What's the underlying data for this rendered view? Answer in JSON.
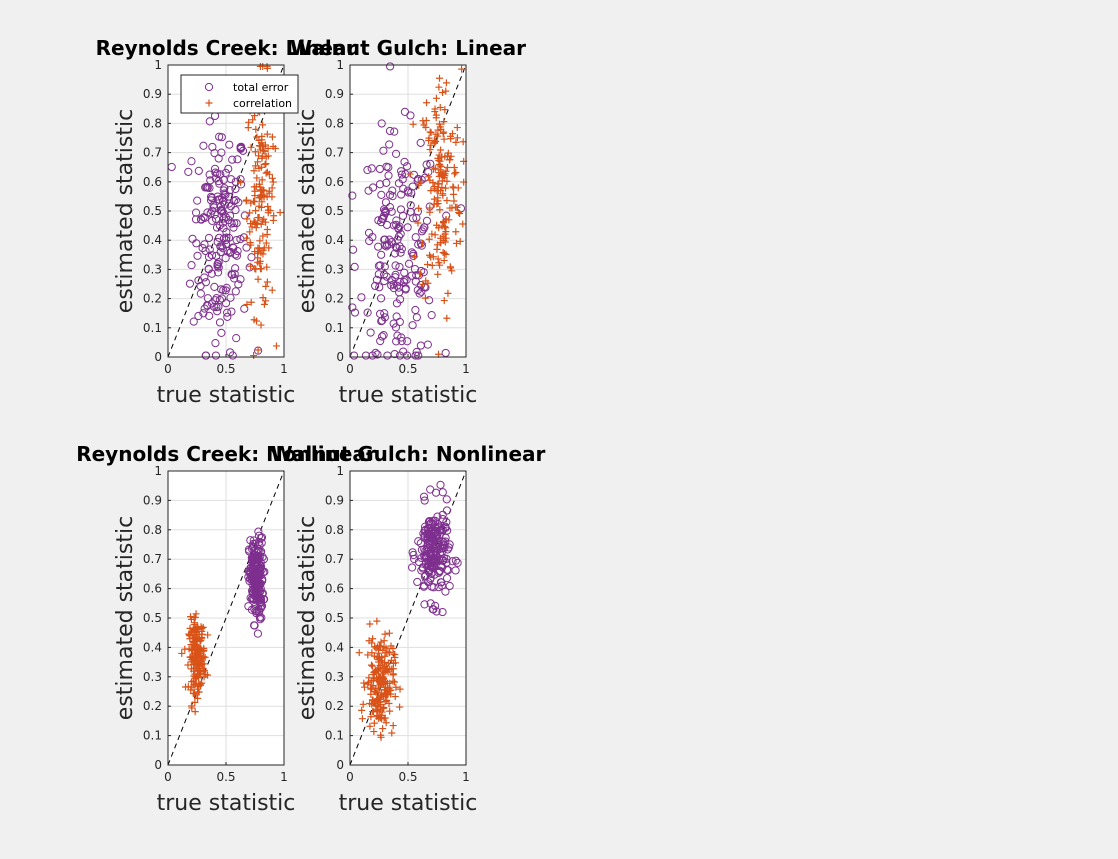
{
  "colors": {
    "total_error": "#7E2F8E",
    "correlation": "#D95319",
    "background": "#f0f0f0",
    "axes_bg": "#ffffff",
    "grid": "#dfdfdf"
  },
  "legend": {
    "entries": [
      "total error",
      "correlation"
    ],
    "location": "top-left of first panel"
  },
  "chart_data": [
    {
      "type": "scatter",
      "title": "Reynolds Creek: Linear",
      "xlabel": "true statistic",
      "ylabel": "estimated statistic",
      "xlim": [
        0,
        1
      ],
      "ylim": [
        0,
        1
      ],
      "xticks": [
        "0",
        "0.5",
        "1"
      ],
      "yticks": [
        "0",
        "0.1",
        "0.2",
        "0.3",
        "0.4",
        "0.5",
        "0.6",
        "0.7",
        "0.8",
        "0.9",
        "1"
      ],
      "grid": true,
      "reference_line": "y = x (dashed)",
      "series": [
        {
          "name": "total error",
          "marker": "circle",
          "x_center": 0.45,
          "x_spread": 0.12,
          "y_center": 0.42,
          "y_spread": 0.2,
          "count": 200
        },
        {
          "name": "correlation",
          "marker": "plus",
          "x_center": 0.8,
          "x_spread": 0.06,
          "y_center": 0.55,
          "y_spread": 0.2,
          "count": 160
        }
      ]
    },
    {
      "type": "scatter",
      "title": "Walnut Gulch: Linear",
      "xlabel": "true statistic",
      "ylabel": "estimated statistic",
      "xlim": [
        0,
        1
      ],
      "ylim": [
        0,
        1
      ],
      "xticks": [
        "0",
        "0.5",
        "1"
      ],
      "yticks": [
        "0",
        "0.1",
        "0.2",
        "0.3",
        "0.4",
        "0.5",
        "0.6",
        "0.7",
        "0.8",
        "0.9",
        "1"
      ],
      "grid": true,
      "reference_line": "y = x (dashed)",
      "series": [
        {
          "name": "total error",
          "marker": "circle",
          "x_center": 0.42,
          "x_spread": 0.17,
          "y_center": 0.35,
          "y_spread": 0.2,
          "count": 200
        },
        {
          "name": "correlation",
          "marker": "plus",
          "x_center": 0.78,
          "x_spread": 0.09,
          "y_center": 0.58,
          "y_spread": 0.2,
          "count": 180
        }
      ]
    },
    {
      "type": "scatter",
      "title": "Reynolds Creek: Nonlinear",
      "xlabel": "true statistic",
      "ylabel": "estimated statistic",
      "xlim": [
        0,
        1
      ],
      "ylim": [
        0,
        1
      ],
      "xticks": [
        "0",
        "0.5",
        "1"
      ],
      "yticks": [
        "0",
        "0.1",
        "0.2",
        "0.3",
        "0.4",
        "0.5",
        "0.6",
        "0.7",
        "0.8",
        "0.9",
        "1"
      ],
      "grid": true,
      "reference_line": "y = x (dashed)",
      "series": [
        {
          "name": "total error",
          "marker": "circle",
          "x_center": 0.76,
          "x_spread": 0.03,
          "y_center": 0.63,
          "y_spread": 0.07,
          "count": 200
        },
        {
          "name": "correlation",
          "marker": "plus",
          "x_center": 0.25,
          "x_spread": 0.035,
          "y_center": 0.37,
          "y_spread": 0.06,
          "count": 200
        }
      ]
    },
    {
      "type": "scatter",
      "title": "Walnut Gulch: Nonlinear",
      "xlabel": "true statistic",
      "ylabel": "estimated statistic",
      "xlim": [
        0,
        1
      ],
      "ylim": [
        0,
        1
      ],
      "xticks": [
        "0",
        "0.5",
        "1"
      ],
      "yticks": [
        "0",
        "0.1",
        "0.2",
        "0.3",
        "0.4",
        "0.5",
        "0.6",
        "0.7",
        "0.8",
        "0.9",
        "1"
      ],
      "grid": true,
      "reference_line": "y = x (dashed)",
      "series": [
        {
          "name": "total error",
          "marker": "circle",
          "x_center": 0.72,
          "x_spread": 0.07,
          "y_center": 0.72,
          "y_spread": 0.08,
          "count": 200
        },
        {
          "name": "correlation",
          "marker": "plus",
          "x_center": 0.26,
          "x_spread": 0.06,
          "y_center": 0.28,
          "y_spread": 0.08,
          "count": 200
        }
      ]
    }
  ]
}
